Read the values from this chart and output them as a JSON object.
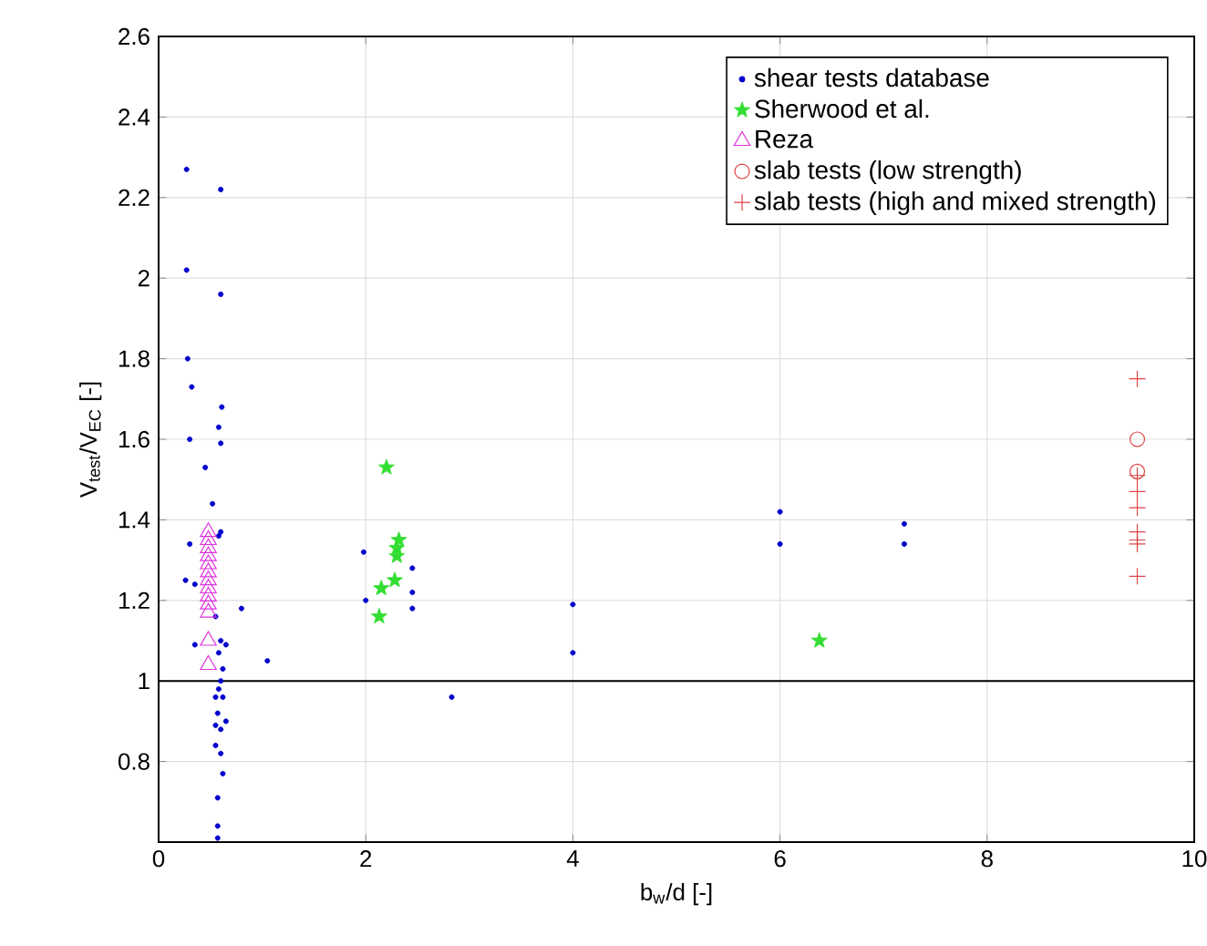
{
  "chart_data": {
    "type": "scatter",
    "xlabel": "b$_{w}$/d [-]",
    "ylabel": "V$_{test}$/V$_{EC}$ [-]",
    "xlim": [
      0,
      10
    ],
    "ylim": [
      0.6,
      2.6
    ],
    "xticks": [
      0,
      2,
      4,
      6,
      8,
      10
    ],
    "yticks": [
      0.8,
      1,
      1.2,
      1.4,
      1.6,
      1.8,
      2,
      2.2,
      2.4,
      2.6
    ],
    "grid": true,
    "legend": "top right",
    "marker": "circle",
    "ref_lines": [
      {
        "axis": "y",
        "value": 1,
        "color": "#000000"
      }
    ],
    "series": [
      {
        "name": "shear tests database",
        "color": "#0000cc",
        "x": [
          0.27,
          0.6,
          0.27,
          0.6,
          0.28,
          0.32,
          0.61,
          0.58,
          0.3,
          0.6,
          0.45,
          0.52,
          0.3,
          0.6,
          0.58,
          0.26,
          0.35,
          0.55,
          0.8,
          0.35,
          0.6,
          0.65,
          0.58,
          0.62,
          0.6,
          0.58,
          0.55,
          0.62,
          0.65,
          0.57,
          0.55,
          0.6,
          0.55,
          0.6,
          0.62,
          0.57,
          0.57,
          0.57,
          1.05,
          1.98,
          2.0,
          2.45,
          2.45,
          2.45,
          2.83,
          4.0,
          4.0,
          6.0,
          6.0,
          7.2,
          7.2
        ],
        "values": [
          2.27,
          2.22,
          2.02,
          1.96,
          1.8,
          1.73,
          1.68,
          1.63,
          1.6,
          1.59,
          1.53,
          1.44,
          1.34,
          1.37,
          1.36,
          1.25,
          1.24,
          1.16,
          1.18,
          1.09,
          1.1,
          1.09,
          1.07,
          1.03,
          1.0,
          0.98,
          0.96,
          0.96,
          0.9,
          0.92,
          0.89,
          0.88,
          0.84,
          0.82,
          0.77,
          0.71,
          0.64,
          0.61,
          1.05,
          1.32,
          1.2,
          1.28,
          1.22,
          1.18,
          0.96,
          1.19,
          1.07,
          1.42,
          1.34,
          1.39,
          1.34
        ]
      },
      {
        "name": "Sherwood et al.",
        "color": "#33dd33",
        "marker": "star",
        "x": [
          2.2,
          2.32,
          2.3,
          2.3,
          2.28,
          2.15,
          2.13,
          6.38
        ],
        "values": [
          1.53,
          1.35,
          1.33,
          1.31,
          1.25,
          1.23,
          1.16,
          1.1
        ]
      },
      {
        "name": "Reza",
        "color": "#dd33dd",
        "marker": "triangle",
        "x": [
          0.48,
          0.48,
          0.48,
          0.48,
          0.48,
          0.48,
          0.48,
          0.48,
          0.48,
          0.48,
          0.48,
          0.48,
          0.48
        ],
        "values": [
          1.37,
          1.35,
          1.33,
          1.31,
          1.29,
          1.27,
          1.25,
          1.23,
          1.21,
          1.19,
          1.17,
          1.1,
          1.04
        ]
      },
      {
        "name": "slab tests (low strength)",
        "color": "#dd4444",
        "marker": "circle",
        "x": [
          9.45,
          9.45
        ],
        "values": [
          1.6,
          1.52
        ]
      },
      {
        "name": "slab tests (high and mixed strength)",
        "color": "#dd4444",
        "marker": "cross",
        "x": [
          9.45,
          9.45,
          9.45,
          9.45,
          9.45,
          9.45,
          9.45,
          9.45
        ],
        "values": [
          1.75,
          1.51,
          1.47,
          1.43,
          1.37,
          1.35,
          1.34,
          1.26
        ]
      }
    ]
  }
}
